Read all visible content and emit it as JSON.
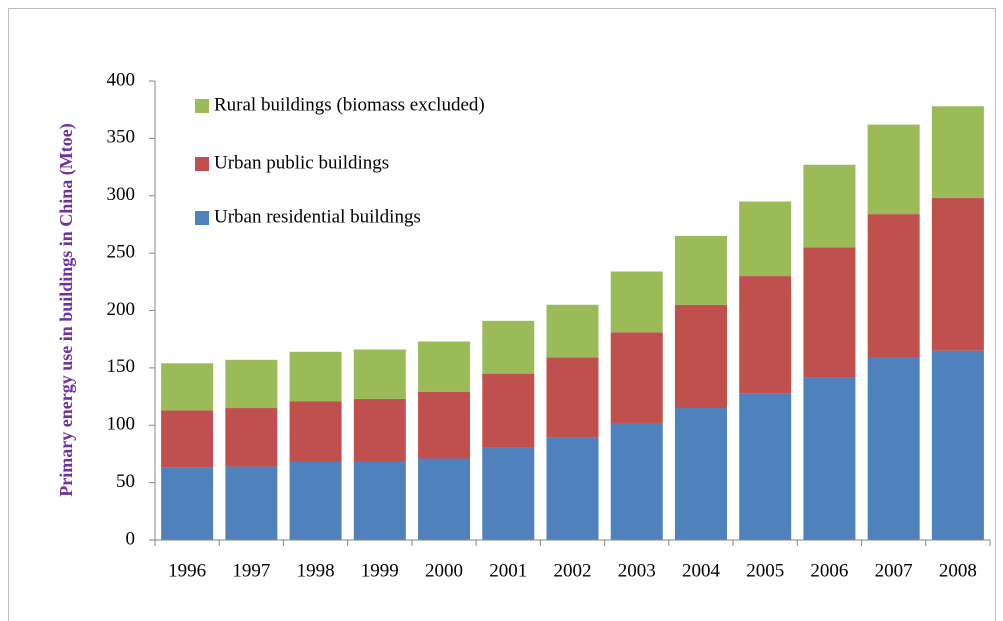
{
  "chart_data": {
    "type": "stacked_bar",
    "y_label": "Primary energy use in buildings in China (Mtoe)",
    "categories": [
      "1996",
      "1997",
      "1998",
      "1999",
      "2000",
      "2001",
      "2002",
      "2003",
      "2004",
      "2005",
      "2006",
      "2007",
      "2008"
    ],
    "series": [
      {
        "name": "Urban residential buildings",
        "color": "#4f81bd",
        "values": [
          63,
          64,
          68,
          68,
          71,
          81,
          89,
          102,
          115,
          128,
          142,
          159,
          165
        ]
      },
      {
        "name": "Urban public buildings",
        "color": "#c0504d",
        "values": [
          50,
          51,
          53,
          55,
          58,
          64,
          70,
          79,
          90,
          102,
          113,
          125,
          133
        ]
      },
      {
        "name": "Rural buildings (biomass excluded)",
        "color": "#9bbb59",
        "values": [
          41,
          42,
          43,
          43,
          44,
          46,
          46,
          53,
          60,
          65,
          72,
          78,
          80
        ]
      }
    ],
    "ylim": [
      0,
      400
    ],
    "yticks": [
      0,
      50,
      100,
      150,
      200,
      250,
      300,
      350,
      400
    ],
    "legend": "upper left"
  }
}
